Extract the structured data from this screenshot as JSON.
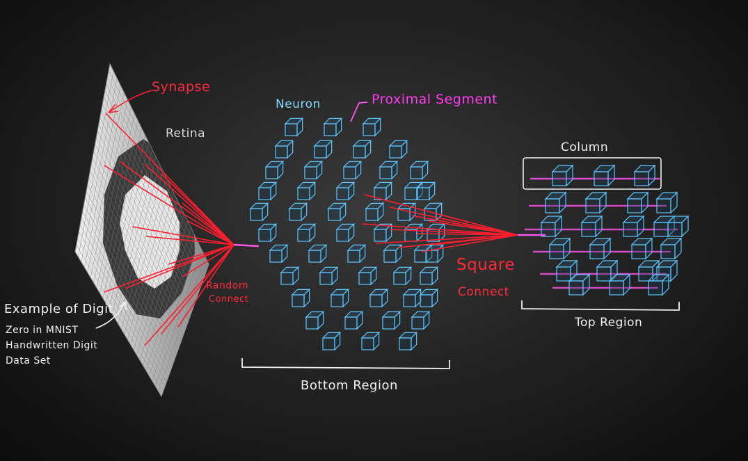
{
  "labels": {
    "synapse": "Synapse",
    "retina": "Retina",
    "neuron": "Neuron",
    "proximal_segment": "Proximal Segment",
    "column": "Column",
    "random": "Random",
    "connect_random": "Connect",
    "square": "Square",
    "connect_square": "Connect",
    "top_region": "Top Region",
    "bottom_region": "Bottom Region",
    "digit_line1": "Example of Digit",
    "digit_line2": "Zero in MNIST",
    "digit_line3": "Handwritten Digit",
    "digit_line4": "Data Set"
  },
  "colors": {
    "connection_red": "#ff1e2e",
    "neuron_cyan": "#5fc6ff",
    "segment_magenta": "#ff55f0",
    "retina_light": "#d9d9d9",
    "retina_dark": "#3c3c3c"
  }
}
